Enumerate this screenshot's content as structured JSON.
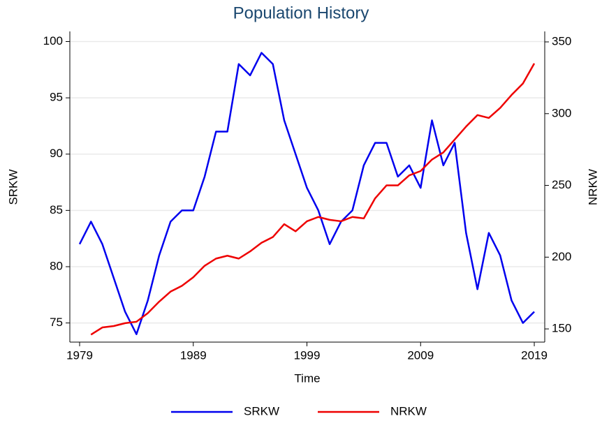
{
  "chart_data": {
    "type": "line",
    "title": "Population History",
    "x_label": "Time",
    "y_label": "SRKW",
    "y2_label": "NRKW",
    "x": [
      1979,
      1980,
      1981,
      1982,
      1983,
      1984,
      1985,
      1986,
      1987,
      1988,
      1989,
      1990,
      1991,
      1992,
      1993,
      1994,
      1995,
      1996,
      1997,
      1998,
      1999,
      2000,
      2001,
      2002,
      2003,
      2004,
      2005,
      2006,
      2007,
      2008,
      2009,
      2010,
      2011,
      2012,
      2013,
      2014,
      2015,
      2016,
      2017,
      2018,
      2019
    ],
    "series": [
      {
        "name": "SRKW",
        "color": "#0000ee",
        "axis": "y",
        "values": [
          82,
          84,
          82,
          79,
          76,
          74,
          77,
          81,
          84,
          85,
          85,
          88,
          92,
          92,
          98,
          97,
          99,
          98,
          93,
          90,
          87,
          85,
          82,
          84,
          85,
          89,
          91,
          91,
          88,
          89,
          87,
          93,
          89,
          91,
          83,
          78,
          83,
          81,
          77,
          75,
          76
        ]
      },
      {
        "name": "NRKW",
        "color": "#ee0000",
        "axis": "y2",
        "values": [
          null,
          146,
          151,
          152,
          154,
          155,
          161,
          169,
          176,
          180,
          186,
          194,
          199,
          201,
          199,
          204,
          210,
          214,
          223,
          218,
          225,
          228,
          226,
          225,
          228,
          227,
          241,
          250,
          250,
          257,
          260,
          268,
          273,
          282,
          291,
          299,
          297,
          304,
          313,
          321,
          335
        ]
      }
    ],
    "xlim": [
      1978.14,
      2019.92
    ],
    "xticks": [
      1979,
      1989,
      1999,
      2009,
      2019
    ],
    "ylim": [
      73.3,
      100.9
    ],
    "yticks": [
      75,
      80,
      85,
      90,
      95,
      100
    ],
    "y2lim": [
      140.8,
      357.3
    ],
    "y2ticks": [
      150,
      200,
      250,
      300,
      350
    ],
    "grid": true,
    "legend": "bottom"
  }
}
